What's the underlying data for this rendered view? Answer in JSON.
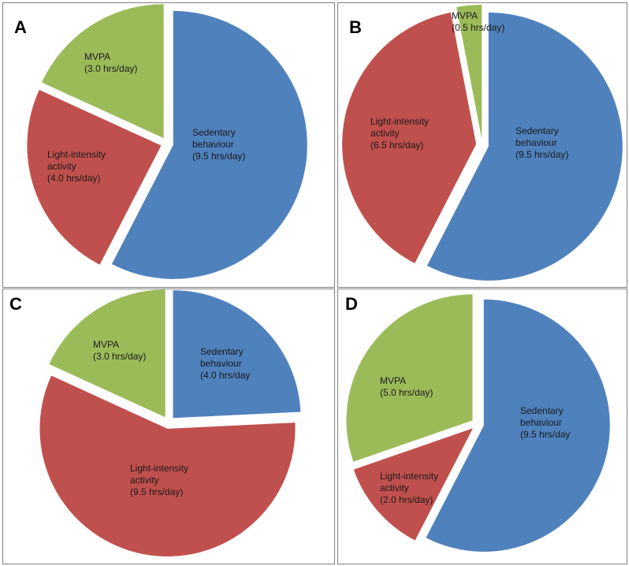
{
  "chart_data": [
    {
      "panel": "A",
      "type": "pie",
      "slices": [
        {
          "label": "Sedentary behaviour",
          "value_text": "(9.5 hrs/day)",
          "value": 9.5,
          "color": "#4f81bd"
        },
        {
          "label": "Light-intensity activity",
          "value_text": "(4.0 hrs/day)",
          "value": 4.0,
          "color": "#c0504d"
        },
        {
          "label": "MVPA",
          "value_text": "(3.0 hrs/day)",
          "value": 3.0,
          "color": "#9bbb59"
        }
      ]
    },
    {
      "panel": "B",
      "type": "pie",
      "slices": [
        {
          "label": "Sedentary behaviour",
          "value_text": "(9.5 hrs/day)",
          "value": 9.5,
          "color": "#4f81bd"
        },
        {
          "label": "Light-intensity activity",
          "value_text": "(6.5 hrs/day)",
          "value": 6.5,
          "color": "#c0504d"
        },
        {
          "label": "MVPA",
          "value_text": "(0.5 hrs/day)",
          "value": 0.5,
          "color": "#9bbb59"
        }
      ]
    },
    {
      "panel": "C",
      "type": "pie",
      "slices": [
        {
          "label": "Sedentary behaviour",
          "value_text": "(4.0 hrs/day",
          "value": 4.0,
          "color": "#4f81bd"
        },
        {
          "label": "Light-intensity activity",
          "value_text": "(9.5 hrs/day)",
          "value": 9.5,
          "color": "#c0504d"
        },
        {
          "label": "MVPA",
          "value_text": "(3.0 hrs/day)",
          "value": 3.0,
          "color": "#9bbb59"
        }
      ]
    },
    {
      "panel": "D",
      "type": "pie",
      "slices": [
        {
          "label": "Sedentary behaviour",
          "value_text": "(9.5 hrs/day",
          "value": 9.5,
          "color": "#4f81bd"
        },
        {
          "label": "Light-intensity activity",
          "value_text": "(2.0 hrs/day)",
          "value": 2.0,
          "color": "#c0504d"
        },
        {
          "label": "MVPA",
          "value_text": "(5.0 hrs/day)",
          "value": 5.0,
          "color": "#9bbb59"
        }
      ]
    }
  ]
}
